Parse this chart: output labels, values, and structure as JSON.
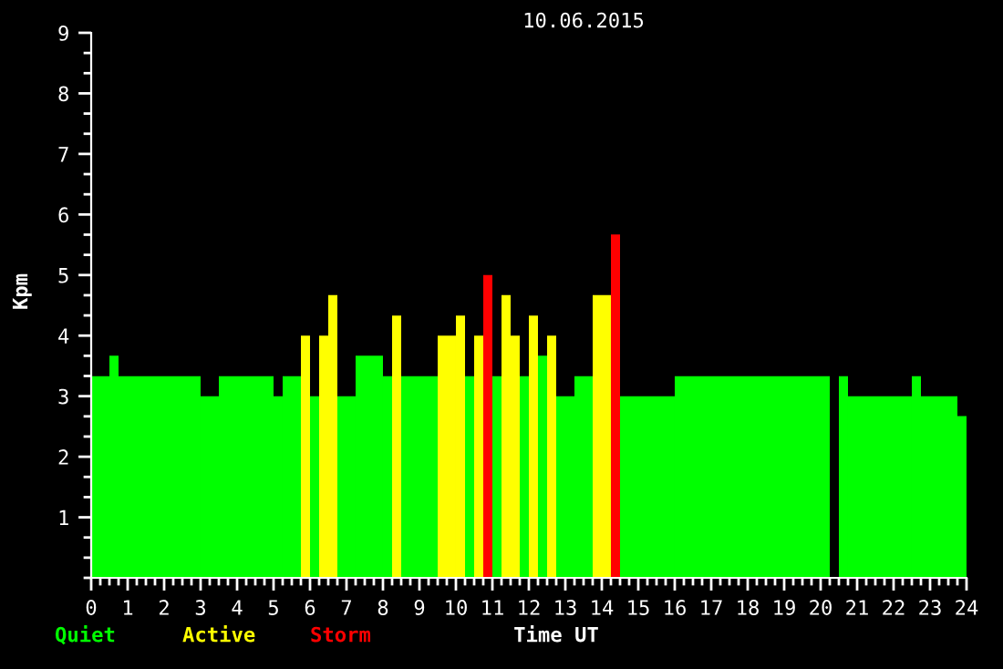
{
  "chart_data": {
    "type": "histogram",
    "title": "10.06.2015",
    "xlabel": "Time UT",
    "ylabel": "Kpm",
    "bins": [
      0,
      0.5,
      0.75,
      3.0,
      3.5,
      5.0,
      5.25,
      5.75,
      6.0,
      6.25,
      6.5,
      6.75,
      7.25,
      8.0,
      8.25,
      8.5,
      9.5,
      10.0,
      10.25,
      10.5,
      10.75,
      11.0,
      11.25,
      11.5,
      11.75,
      12.0,
      12.25,
      12.5,
      12.75,
      13.25,
      13.75,
      14.25,
      14.5,
      16.0,
      20.25,
      20.5,
      20.75,
      22.5,
      22.75,
      23.75,
      24
    ],
    "series": [
      {
        "name": "Quiet",
        "color": "#00ff00",
        "values": [
          3.33,
          3.67,
          3.33,
          3.0,
          3.33,
          3.0,
          3.33,
          null,
          3.0,
          null,
          null,
          3.0,
          3.67,
          3.33,
          null,
          3.33,
          null,
          null,
          3.33,
          null,
          null,
          3.33,
          null,
          null,
          3.33,
          null,
          3.67,
          null,
          3.0,
          3.33,
          null,
          null,
          3.0,
          3.33,
          null,
          3.33,
          3.0,
          3.33,
          3.0,
          2.67
        ]
      },
      {
        "name": "Active",
        "color": "#ffff00",
        "values": [
          null,
          null,
          null,
          null,
          null,
          null,
          null,
          4.0,
          null,
          4.0,
          4.67,
          null,
          null,
          null,
          4.33,
          null,
          4.0,
          4.33,
          null,
          4.0,
          null,
          null,
          4.67,
          4.0,
          null,
          4.33,
          null,
          4.0,
          null,
          null,
          4.67,
          null,
          null,
          null,
          null,
          null,
          null,
          null,
          null,
          null
        ]
      },
      {
        "name": "Storm",
        "color": "#ff0000",
        "values": [
          null,
          null,
          null,
          null,
          null,
          null,
          null,
          null,
          null,
          null,
          null,
          null,
          null,
          null,
          null,
          null,
          null,
          null,
          null,
          null,
          5.0,
          null,
          null,
          null,
          null,
          null,
          null,
          null,
          null,
          null,
          null,
          5.67,
          null,
          null,
          null,
          null,
          null,
          null,
          null,
          null
        ]
      }
    ],
    "xlim": [
      0,
      24
    ],
    "xticks": [
      0,
      1,
      2,
      3,
      4,
      5,
      6,
      7,
      8,
      9,
      10,
      11,
      12,
      13,
      14,
      15,
      16,
      17,
      18,
      19,
      20,
      21,
      22,
      23,
      24
    ],
    "ylim": [
      0,
      9
    ],
    "yticks": [
      1,
      2,
      3,
      4,
      5,
      6,
      7,
      8,
      9
    ],
    "legend": "bottom left"
  }
}
